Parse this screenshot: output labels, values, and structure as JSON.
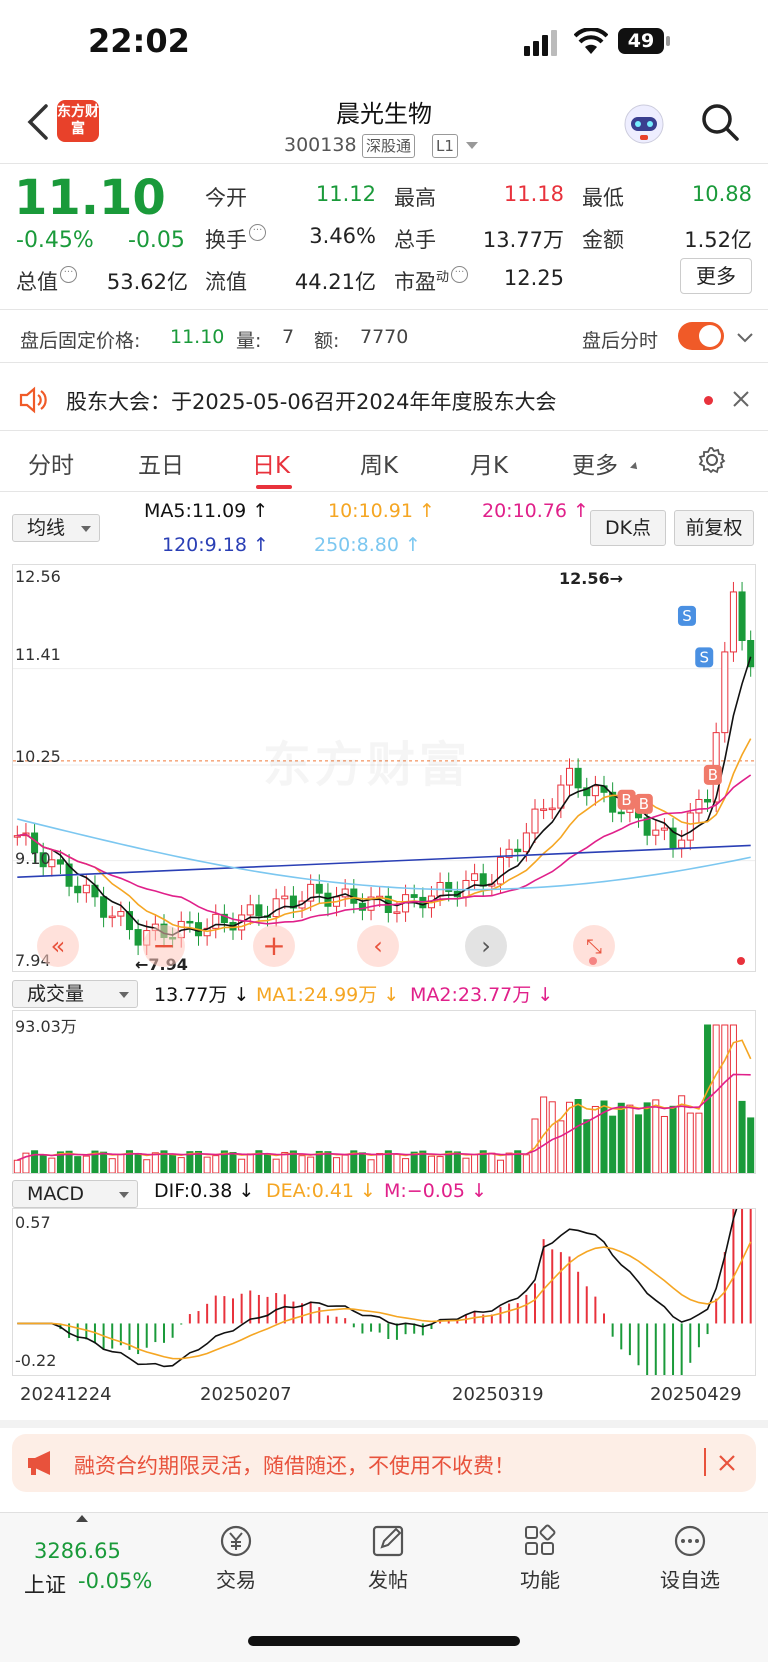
{
  "status_bar": {
    "time": "22:02",
    "battery": "49"
  },
  "header": {
    "logo": "东方财富",
    "name": "晨光生物",
    "code": "300138",
    "tag1": "深股通",
    "tag2": "L1"
  },
  "quote": {
    "price": "11.10",
    "pct": "-0.45%",
    "chg": "-0.05",
    "fields": [
      {
        "label": "今开",
        "value": "11.12",
        "color": "green"
      },
      {
        "label": "最高",
        "value": "11.18",
        "color": "red"
      },
      {
        "label": "最低",
        "value": "10.88",
        "color": "green"
      },
      {
        "label": "换手",
        "value": "3.46%",
        "color": "black"
      },
      {
        "label": "总手",
        "value": "13.77万",
        "color": "black"
      },
      {
        "label": "金额",
        "value": "1.52亿",
        "color": "black"
      },
      {
        "label": "总值",
        "value": "53.62亿",
        "color": "black"
      },
      {
        "label": "流值",
        "value": "44.21亿",
        "color": "black"
      },
      {
        "label": "市盈",
        "label_sup": "动",
        "value": "12.25",
        "color": "black"
      }
    ],
    "more": "更多"
  },
  "after_hours": {
    "label": "盘后固定价格:",
    "price": "11.10",
    "vol_label": "量:",
    "vol": "7",
    "amt_label": "额:",
    "amt": "7770",
    "toggle_label": "盘后分时"
  },
  "notice": {
    "text": "股东大会：于2025-05-06召开2024年年度股东大会"
  },
  "tabs": [
    "分时",
    "五日",
    "日K",
    "周K",
    "月K",
    "更多"
  ],
  "active_tab": "日K",
  "ma": {
    "selector": "均线",
    "ma5": "MA5:11.09",
    "ma10": "10:10.91",
    "ma20": "20:10.76",
    "ma120": "120:9.18",
    "ma250": "250:8.80",
    "dk": "DK点",
    "fq": "前复权"
  },
  "kline": {
    "y_labels": [
      "12.56",
      "11.41",
      "10.25",
      "9.10",
      "7.94"
    ],
    "max_label": "12.56→",
    "min_label": "←7.94",
    "watermark": "东方财富",
    "signals": {
      "s": "S",
      "b": "B"
    }
  },
  "volume": {
    "selector": "成交量",
    "vol": "13.77万",
    "ma1": "MA1:24.99万",
    "ma2": "MA2:23.77万",
    "max": "93.03万"
  },
  "macd": {
    "selector": "MACD",
    "dif": "DIF:0.38",
    "dea": "DEA:0.41",
    "m": "M:−0.05",
    "top": "0.57",
    "bottom": "-0.22",
    "dates": [
      "20241224",
      "20250207",
      "20250319",
      "20250429"
    ]
  },
  "ad": {
    "text": "融资合约期限灵活，随借随还，不使用不收费！"
  },
  "bottom_nav": {
    "index_value": "3286.65",
    "index_name": "上证",
    "index_chg": "-0.05%",
    "items": [
      {
        "label": "交易",
        "icon": "yen-icon"
      },
      {
        "label": "发帖",
        "icon": "edit-icon"
      },
      {
        "label": "功能",
        "icon": "grid-icon"
      },
      {
        "label": "设自选",
        "icon": "more-icon"
      }
    ]
  },
  "colors": {
    "up": "#e8323c",
    "down": "#1a9a3a",
    "accent": "#f05a28",
    "ma5": "#111111",
    "ma10": "#f5a623",
    "ma20": "#e0208a",
    "ma120": "#2a3fb5",
    "ma250": "#7cc7f0"
  }
}
